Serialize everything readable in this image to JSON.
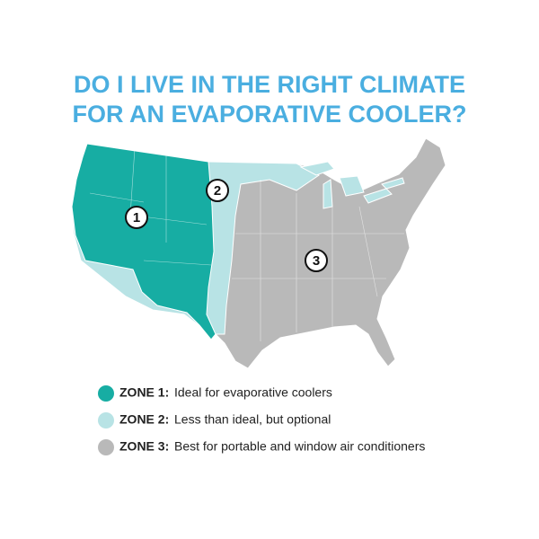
{
  "title": [
    "DO I LIVE IN THE RIGHT CLIMATE",
    "FOR AN EVAPORATIVE COOLER?"
  ],
  "map": {
    "markers": [
      "1",
      "2",
      "3"
    ]
  },
  "legend": [
    {
      "zone": "ZONE 1:",
      "description": "Ideal for evaporative coolers",
      "color": "#17ada3"
    },
    {
      "zone": "ZONE 2:",
      "description": "Less than ideal, but optional",
      "color": "#b8e3e5"
    },
    {
      "zone": "ZONE 3:",
      "description": "Best for portable and window air conditioners",
      "color": "#b9b9b9"
    }
  ]
}
